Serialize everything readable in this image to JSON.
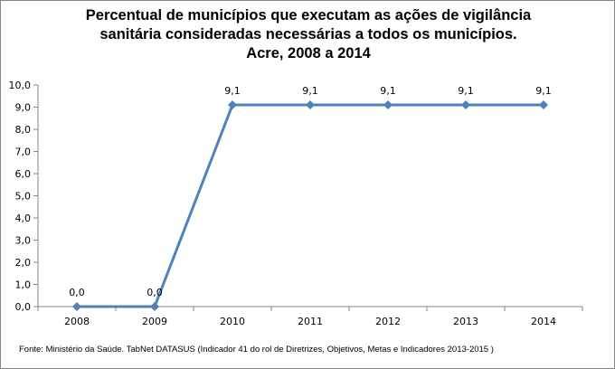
{
  "chart_data": {
    "type": "line",
    "title": [
      "Percentual de municípios que executam as ações de vigilância",
      "sanitária consideradas necessárias a todos os municípios.",
      "Acre, 2008 a 2014"
    ],
    "categories": [
      "2008",
      "2009",
      "2010",
      "2011",
      "2012",
      "2013",
      "2014"
    ],
    "series": [
      {
        "name": "Percentual",
        "values": [
          0.0,
          0.0,
          9.1,
          9.1,
          9.1,
          9.1,
          9.1
        ],
        "labels": [
          "0,0",
          "0,0",
          "9,1",
          "9,1",
          "9,1",
          "9,1",
          "9,1"
        ],
        "color": "#4F81BD"
      }
    ],
    "yticks": [
      "0,0",
      "1,0",
      "2,0",
      "3,0",
      "4,0",
      "5,0",
      "6,0",
      "7,0",
      "8,0",
      "9,0",
      "10,0"
    ],
    "ylim": [
      0,
      10
    ],
    "xlabel": "",
    "ylabel": "",
    "grid": false,
    "legend": "none"
  },
  "source": "Fonte: Ministério da Saúde. TabNet DATASUS (Indicador 41 do rol de Diretrizes, Objetivos, Metas e Indicadores 2013-2015 )"
}
